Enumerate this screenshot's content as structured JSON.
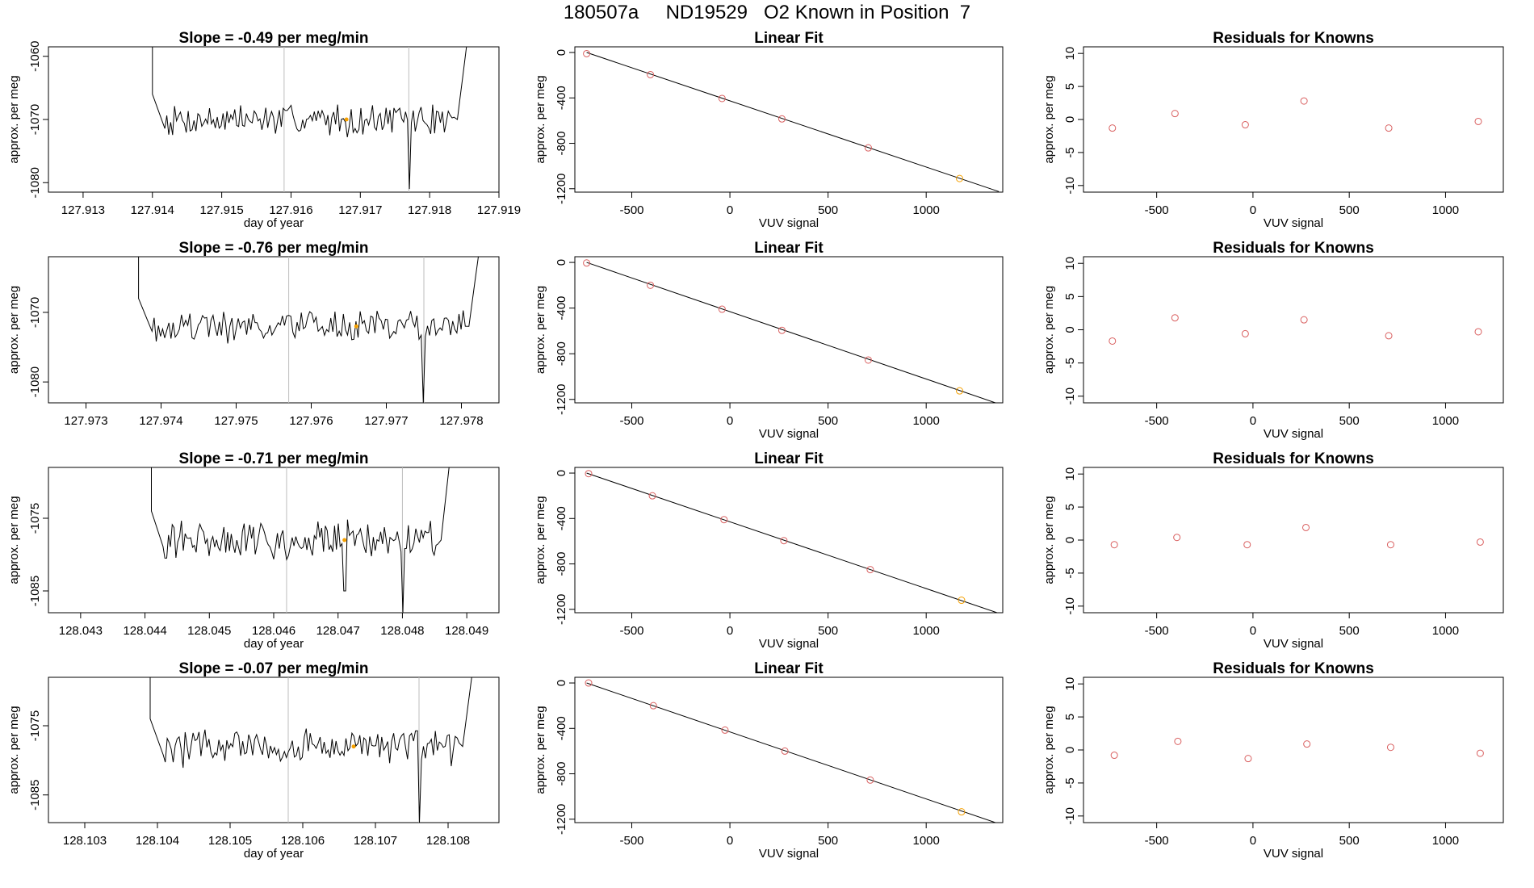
{
  "page_title": "180507a     ND19529   O2 Known in Position  7",
  "colors": {
    "line": "#000000",
    "frame": "#000000",
    "vline": "#bebebe",
    "known_point": "#d95f5f",
    "highlight_point": "#f5a000"
  },
  "chart_data": [
    {
      "type": "line",
      "row": 1,
      "title": "Slope =  -0.49  per meg/min",
      "xlabel": "day of year",
      "ylabel": "approx. per meg",
      "xlim": [
        127.9125,
        127.919
      ],
      "ylim": [
        -1081.5,
        -1058.5
      ],
      "xticks": [
        "127.913",
        "127.914",
        "127.915",
        "127.916",
        "127.917",
        "127.918",
        "127.919"
      ],
      "yticks": [
        "-1060",
        "-1070",
        "-1080"
      ],
      "x_start": 127.914,
      "x_end": 127.9186,
      "baseline": -1070,
      "noise": 2.2,
      "seed": 7,
      "highlight": [
        127.9168,
        -1070
      ],
      "vlines": [
        127.9159,
        127.9177
      ],
      "dips": [
        [
          127.9177,
          -1081
        ]
      ]
    },
    {
      "type": "line",
      "row": 2,
      "title": "Slope =  -0.76  per meg/min",
      "xlabel": "",
      "ylabel": "approx. per meg",
      "xlim": [
        127.9725,
        127.9785
      ],
      "ylim": [
        -1083,
        -1062
      ],
      "xticks": [
        "127.973",
        "127.974",
        "127.975",
        "127.976",
        "127.977",
        "127.978"
      ],
      "yticks": [
        "-1070",
        "-1080"
      ],
      "x_start": 127.9737,
      "x_end": 127.9783,
      "baseline": -1072,
      "noise": 2.0,
      "seed": 19,
      "highlight": [
        127.9766,
        -1072
      ],
      "vlines": [
        127.9757,
        127.9775
      ],
      "dips": [
        [
          127.9775,
          -1083
        ]
      ]
    },
    {
      "type": "line",
      "row": 3,
      "title": "Slope =  -0.71  per meg/min",
      "xlabel": "day of year",
      "ylabel": "approx. per meg",
      "xlim": [
        128.0425,
        128.0495
      ],
      "ylim": [
        -1088,
        -1068
      ],
      "xticks": [
        "128.043",
        "128.044",
        "128.045",
        "128.046",
        "128.047",
        "128.048",
        "128.049"
      ],
      "yticks": [
        "-1075",
        "-1085"
      ],
      "x_start": 128.0441,
      "x_end": 128.0488,
      "baseline": -1078,
      "noise": 2.3,
      "seed": 31,
      "highlight": [
        128.0471,
        -1078
      ],
      "vlines": [
        128.0462,
        128.048
      ],
      "dips": [
        [
          128.048,
          -1088
        ],
        [
          128.0471,
          -1085
        ]
      ]
    },
    {
      "type": "line",
      "row": 4,
      "title": "Slope =  -0.07  per meg/min",
      "xlabel": "day of year",
      "ylabel": "approx. per meg",
      "xlim": [
        128.1025,
        128.1087
      ],
      "ylim": [
        -1089,
        -1068
      ],
      "xticks": [
        "128.103",
        "128.104",
        "128.105",
        "128.106",
        "128.107",
        "128.108"
      ],
      "yticks": [
        "-1075",
        "-1085"
      ],
      "x_start": 128.1039,
      "x_end": 128.1084,
      "baseline": -1078,
      "noise": 2.4,
      "seed": 47,
      "highlight": [
        128.1067,
        -1078
      ],
      "vlines": [
        128.1058,
        128.1076
      ],
      "dips": [
        [
          128.1076,
          -1089
        ]
      ]
    },
    {
      "type": "scatter",
      "row": 1,
      "title": "Linear Fit",
      "xlabel": "VUV signal",
      "ylabel": "approx. per meg",
      "xlim": [
        -790,
        1390
      ],
      "ylim": [
        -1230,
        50
      ],
      "xticks": [
        "-500",
        "0",
        "500",
        "1000"
      ],
      "yticks": [
        "0",
        "-400",
        "-800",
        "-1200"
      ],
      "points": [
        [
          -730,
          -10
        ],
        [
          -405,
          -195
        ],
        [
          -40,
          -405
        ],
        [
          265,
          -585
        ],
        [
          705,
          -840
        ],
        [
          1170,
          -1110
        ]
      ],
      "fit_line": [
        [
          -730,
          0
        ],
        [
          1370,
          -1225
        ]
      ],
      "highlight_index": 5
    },
    {
      "type": "scatter",
      "row": 2,
      "title": "Linear Fit",
      "xlabel": "VUV signal",
      "ylabel": "approx. per meg",
      "xlim": [
        -790,
        1390
      ],
      "ylim": [
        -1230,
        50
      ],
      "xticks": [
        "-500",
        "0",
        "500",
        "1000"
      ],
      "yticks": [
        "0",
        "-400",
        "-800",
        "-1200"
      ],
      "points": [
        [
          -730,
          -5
        ],
        [
          -405,
          -200
        ],
        [
          -40,
          -410
        ],
        [
          265,
          -595
        ],
        [
          705,
          -855
        ],
        [
          1170,
          -1125
        ]
      ],
      "fit_line": [
        [
          -730,
          0
        ],
        [
          1370,
          -1240
        ]
      ],
      "highlight_index": 5
    },
    {
      "type": "scatter",
      "row": 3,
      "title": "Linear Fit",
      "xlabel": "VUV signal",
      "ylabel": "approx. per meg",
      "xlim": [
        -790,
        1390
      ],
      "ylim": [
        -1230,
        50
      ],
      "xticks": [
        "-500",
        "0",
        "500",
        "1000"
      ],
      "yticks": [
        "0",
        "-400",
        "-800",
        "-1200"
      ],
      "points": [
        [
          -720,
          -5
        ],
        [
          -395,
          -200
        ],
        [
          -30,
          -410
        ],
        [
          275,
          -595
        ],
        [
          715,
          -850
        ],
        [
          1180,
          -1120
        ]
      ],
      "fit_line": [
        [
          -730,
          0
        ],
        [
          1370,
          -1235
        ]
      ],
      "highlight_index": 5
    },
    {
      "type": "scatter",
      "row": 4,
      "title": "Linear Fit",
      "xlabel": "VUV signal",
      "ylabel": "approx. per meg",
      "xlim": [
        -790,
        1390
      ],
      "ylim": [
        -1230,
        50
      ],
      "xticks": [
        "-500",
        "0",
        "500",
        "1000"
      ],
      "yticks": [
        "0",
        "-400",
        "-800",
        "-1200"
      ],
      "points": [
        [
          -720,
          0
        ],
        [
          -390,
          -200
        ],
        [
          -25,
          -415
        ],
        [
          280,
          -600
        ],
        [
          715,
          -855
        ],
        [
          1180,
          -1135
        ]
      ],
      "fit_line": [
        [
          -730,
          0
        ],
        [
          1370,
          -1240
        ]
      ],
      "highlight_index": 5
    },
    {
      "type": "scatter",
      "row": 1,
      "title": "Residuals for Knowns",
      "xlabel": "VUV signal",
      "ylabel": "approx. per meg",
      "xlim": [
        -880,
        1300
      ],
      "ylim": [
        -11,
        11
      ],
      "xticks": [
        "-500",
        "0",
        "500",
        "1000"
      ],
      "yticks": [
        "10",
        "5",
        "0",
        "-5",
        "-10"
      ],
      "points": [
        [
          -730,
          -1.3
        ],
        [
          -405,
          0.9
        ],
        [
          -40,
          -0.8
        ],
        [
          265,
          2.8
        ],
        [
          705,
          -1.3
        ],
        [
          1170,
          -0.3
        ]
      ]
    },
    {
      "type": "scatter",
      "row": 2,
      "title": "Residuals for Knowns",
      "xlabel": "VUV signal",
      "ylabel": "approx. per meg",
      "xlim": [
        -880,
        1300
      ],
      "ylim": [
        -11,
        11
      ],
      "xticks": [
        "-500",
        "0",
        "500",
        "1000"
      ],
      "yticks": [
        "10",
        "5",
        "0",
        "-5",
        "-10"
      ],
      "points": [
        [
          -730,
          -1.7
        ],
        [
          -405,
          1.8
        ],
        [
          -40,
          -0.6
        ],
        [
          265,
          1.5
        ],
        [
          705,
          -0.9
        ],
        [
          1170,
          -0.3
        ]
      ]
    },
    {
      "type": "scatter",
      "row": 3,
      "title": "Residuals for Knowns",
      "xlabel": "VUV signal",
      "ylabel": "approx. per meg",
      "xlim": [
        -880,
        1300
      ],
      "ylim": [
        -11,
        11
      ],
      "xticks": [
        "-500",
        "0",
        "500",
        "1000"
      ],
      "yticks": [
        "10",
        "5",
        "0",
        "-5",
        "-10"
      ],
      "points": [
        [
          -720,
          -0.7
        ],
        [
          -395,
          0.4
        ],
        [
          -30,
          -0.7
        ],
        [
          275,
          1.9
        ],
        [
          715,
          -0.7
        ],
        [
          1180,
          -0.3
        ]
      ]
    },
    {
      "type": "scatter",
      "row": 4,
      "title": "Residuals for Knowns",
      "xlabel": "VUV signal",
      "ylabel": "approx. per meg",
      "xlim": [
        -880,
        1300
      ],
      "ylim": [
        -11,
        11
      ],
      "xticks": [
        "-500",
        "0",
        "500",
        "1000"
      ],
      "yticks": [
        "10",
        "5",
        "0",
        "-5",
        "-10"
      ],
      "points": [
        [
          -720,
          -0.8
        ],
        [
          -390,
          1.3
        ],
        [
          -25,
          -1.3
        ],
        [
          280,
          0.9
        ],
        [
          715,
          0.4
        ],
        [
          1180,
          -0.5
        ]
      ]
    }
  ]
}
